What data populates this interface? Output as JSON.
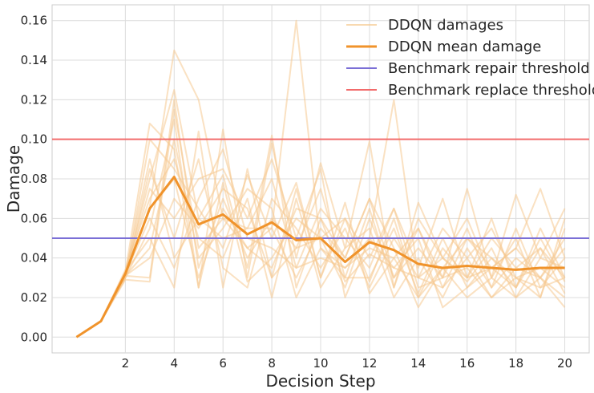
{
  "chart_data": {
    "type": "line",
    "xlabel": "Decision Step",
    "ylabel": "Damage",
    "xlim": [
      -1,
      21
    ],
    "ylim": [
      -0.008,
      0.168
    ],
    "x_ticks": [
      2,
      4,
      6,
      8,
      10,
      12,
      14,
      16,
      18,
      20
    ],
    "y_ticks": [
      0.0,
      0.02,
      0.04,
      0.06,
      0.08,
      0.1,
      0.12,
      0.14,
      0.16
    ],
    "y_tick_labels": [
      "0.00",
      "0.02",
      "0.04",
      "0.06",
      "0.08",
      "0.10",
      "0.12",
      "0.14",
      "0.16"
    ],
    "grid": true,
    "legend_position": "top-right",
    "x": [
      0,
      1,
      2,
      3,
      4,
      5,
      6,
      7,
      8,
      9,
      10,
      11,
      12,
      13,
      14,
      15,
      16,
      17,
      18,
      19,
      20
    ],
    "series": [
      {
        "name": "DDQN mean damage",
        "color": "#f0932b",
        "values": [
          0.0,
          0.008,
          0.032,
          0.065,
          0.081,
          0.057,
          0.062,
          0.052,
          0.058,
          0.049,
          0.05,
          0.038,
          0.048,
          0.044,
          0.037,
          0.035,
          0.036,
          0.035,
          0.034,
          0.035,
          0.035
        ]
      }
    ],
    "runs_name": "DDQN damages",
    "runs_color": "#f5c98f",
    "runs": [
      [
        0,
        0.008,
        0.03,
        0.066,
        0.145,
        0.12,
        0.06,
        0.045,
        0.055,
        0.16,
        0.045,
        0.035,
        0.05,
        0.12,
        0.03,
        0.04,
        0.03,
        0.035,
        0.025,
        0.045,
        0.03
      ],
      [
        0,
        0.008,
        0.033,
        0.108,
        0.095,
        0.025,
        0.105,
        0.03,
        0.098,
        0.04,
        0.088,
        0.045,
        0.099,
        0.025,
        0.068,
        0.04,
        0.06,
        0.03,
        0.072,
        0.04,
        0.065
      ],
      [
        0,
        0.008,
        0.032,
        0.08,
        0.125,
        0.06,
        0.082,
        0.035,
        0.102,
        0.025,
        0.06,
        0.04,
        0.07,
        0.03,
        0.055,
        0.025,
        0.05,
        0.035,
        0.045,
        0.075,
        0.04
      ],
      [
        0,
        0.008,
        0.031,
        0.03,
        0.12,
        0.035,
        0.07,
        0.04,
        0.06,
        0.045,
        0.05,
        0.06,
        0.04,
        0.065,
        0.035,
        0.07,
        0.03,
        0.06,
        0.025,
        0.05,
        0.028
      ],
      [
        0,
        0.008,
        0.029,
        0.028,
        0.115,
        0.045,
        0.06,
        0.055,
        0.08,
        0.035,
        0.04,
        0.035,
        0.045,
        0.04,
        0.055,
        0.03,
        0.075,
        0.03,
        0.05,
        0.02,
        0.06
      ],
      [
        0,
        0.008,
        0.03,
        0.1,
        0.085,
        0.065,
        0.045,
        0.082,
        0.05,
        0.078,
        0.03,
        0.06,
        0.028,
        0.06,
        0.02,
        0.045,
        0.03,
        0.05,
        0.035,
        0.03,
        0.045
      ],
      [
        0,
        0.008,
        0.032,
        0.075,
        0.06,
        0.08,
        0.085,
        0.06,
        0.09,
        0.05,
        0.085,
        0.02,
        0.05,
        0.035,
        0.03,
        0.025,
        0.04,
        0.02,
        0.03,
        0.025,
        0.03
      ],
      [
        0,
        0.008,
        0.033,
        0.05,
        0.025,
        0.104,
        0.025,
        0.085,
        0.03,
        0.075,
        0.03,
        0.068,
        0.022,
        0.04,
        0.02,
        0.035,
        0.02,
        0.03,
        0.02,
        0.03,
        0.02
      ],
      [
        0,
        0.008,
        0.03,
        0.055,
        0.11,
        0.025,
        0.078,
        0.028,
        0.04,
        0.06,
        0.05,
        0.025,
        0.06,
        0.03,
        0.045,
        0.03,
        0.055,
        0.025,
        0.04,
        0.03,
        0.05
      ],
      [
        0,
        0.008,
        0.031,
        0.04,
        0.07,
        0.055,
        0.075,
        0.065,
        0.03,
        0.045,
        0.075,
        0.03,
        0.03,
        0.055,
        0.022,
        0.05,
        0.025,
        0.04,
        0.03,
        0.035,
        0.025
      ],
      [
        0,
        0.008,
        0.034,
        0.07,
        0.09,
        0.05,
        0.04,
        0.07,
        0.02,
        0.07,
        0.025,
        0.045,
        0.055,
        0.02,
        0.04,
        0.02,
        0.045,
        0.025,
        0.055,
        0.025,
        0.04
      ],
      [
        0,
        0.008,
        0.032,
        0.06,
        0.035,
        0.07,
        0.095,
        0.05,
        0.045,
        0.035,
        0.065,
        0.05,
        0.035,
        0.065,
        0.025,
        0.03,
        0.035,
        0.02,
        0.035,
        0.045,
        0.022
      ],
      [
        0,
        0.008,
        0.031,
        0.045,
        0.1,
        0.04,
        0.055,
        0.075,
        0.065,
        0.02,
        0.045,
        0.03,
        0.065,
        0.025,
        0.06,
        0.04,
        0.028,
        0.045,
        0.02,
        0.04,
        0.035
      ],
      [
        0,
        0.008,
        0.03,
        0.085,
        0.05,
        0.09,
        0.035,
        0.025,
        0.07,
        0.055,
        0.035,
        0.055,
        0.025,
        0.05,
        0.03,
        0.055,
        0.04,
        0.055,
        0.03,
        0.02,
        0.055
      ],
      [
        0,
        0.008,
        0.033,
        0.065,
        0.08,
        0.03,
        0.065,
        0.045,
        0.035,
        0.065,
        0.06,
        0.028,
        0.042,
        0.035,
        0.05,
        0.015,
        0.025,
        0.035,
        0.045,
        0.03,
        0.015
      ],
      [
        0,
        0.008,
        0.032,
        0.09,
        0.04,
        0.06,
        0.05,
        0.055,
        0.055,
        0.03,
        0.055,
        0.04,
        0.07,
        0.045,
        0.015,
        0.035,
        0.05,
        0.04,
        0.025,
        0.055,
        0.03
      ]
    ],
    "thresholds": [
      {
        "name": "Benchmark repair threshold",
        "value": 0.05,
        "color": "#7b6fd6"
      },
      {
        "name": "Benchmark replace threshold",
        "value": 0.1,
        "color": "#f26b6b"
      }
    ]
  }
}
